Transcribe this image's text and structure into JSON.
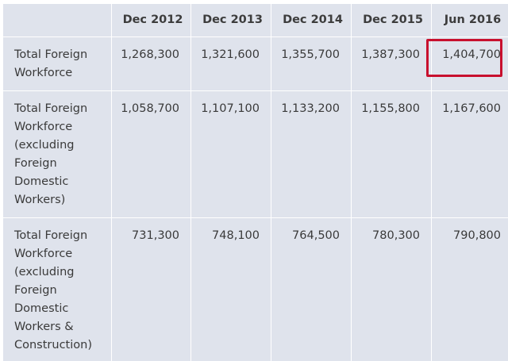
{
  "table": {
    "columns": [
      "Dec 2012",
      "Dec 2013",
      "Dec 2014",
      "Dec 2015",
      "Jun 2016"
    ],
    "rows": [
      {
        "label": "Total Foreign Workforce",
        "values": [
          "1,268,300",
          "1,321,600",
          "1,355,700",
          "1,387,300",
          "1,404,700"
        ]
      },
      {
        "label": "Total Foreign Workforce (excluding Foreign Domestic Workers)",
        "values": [
          "1,058,700",
          "1,107,100",
          "1,133,200",
          "1,155,800",
          "1,167,600"
        ]
      },
      {
        "label": "Total Foreign Workforce (excluding Foreign Domestic Workers & Construction)",
        "values": [
          "731,300",
          "748,100",
          "764,500",
          "780,300",
          "790,800"
        ]
      }
    ]
  },
  "colors": {
    "table_background": "#dfe3ec",
    "grid_lines": "#ffffff",
    "highlight": "#c8102e"
  }
}
